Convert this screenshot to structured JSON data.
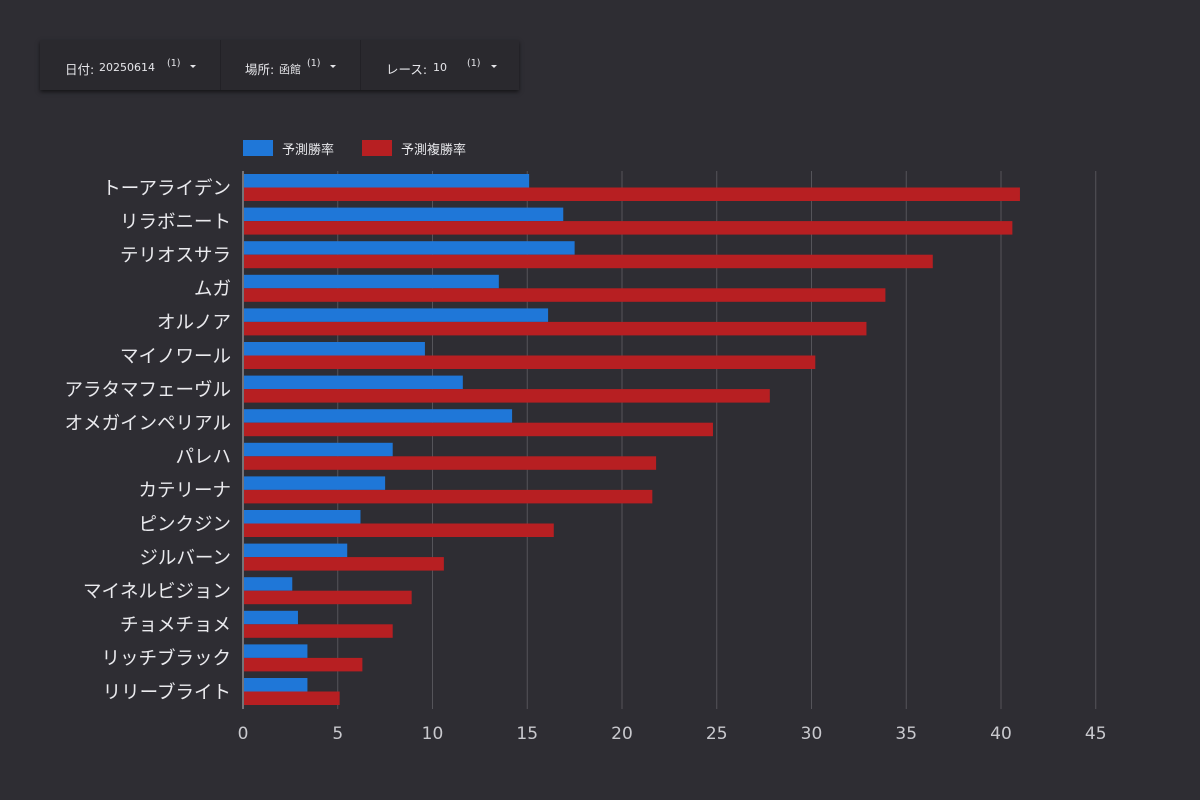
{
  "filters": [
    {
      "label": "日付",
      "value": "20250614",
      "count": "(1)"
    },
    {
      "label": "場所",
      "value": "函館",
      "count": "(1)"
    },
    {
      "label": "レース",
      "value": "10",
      "count": "(1)"
    }
  ],
  "colors": {
    "background": "#2e2d33",
    "series_win": "#1f77d8",
    "series_place": "#b71f22",
    "grid": "#55545a"
  },
  "chart_data": {
    "type": "bar",
    "orientation": "horizontal",
    "categories": [
      "トーアライデン",
      "リラボニート",
      "テリオスサラ",
      "ムガ",
      "オルノア",
      "マイノワール",
      "アラタマフェーヴル",
      "オメガインペリアル",
      "パレハ",
      "カテリーナ",
      "ピンクジン",
      "ジルバーン",
      "マイネルビジョン",
      "チョメチョメ",
      "リッチブラック",
      "リリーブライト"
    ],
    "series": [
      {
        "name": "予測勝率",
        "color": "#1f77d8",
        "values": [
          15.1,
          16.9,
          17.5,
          13.5,
          16.1,
          9.6,
          11.6,
          14.2,
          7.9,
          7.5,
          6.2,
          5.5,
          2.6,
          2.9,
          3.4,
          3.4
        ]
      },
      {
        "name": "予測複勝率",
        "color": "#b71f22",
        "values": [
          41.0,
          40.6,
          36.4,
          33.9,
          32.9,
          30.2,
          27.8,
          24.8,
          21.8,
          21.6,
          16.4,
          10.6,
          8.9,
          7.9,
          6.3,
          5.1
        ]
      }
    ],
    "xlim": [
      0,
      45
    ],
    "xticks": [
      0,
      5,
      10,
      15,
      20,
      25,
      30,
      35,
      40,
      45
    ],
    "grid": true,
    "legend_position": "top-left"
  }
}
